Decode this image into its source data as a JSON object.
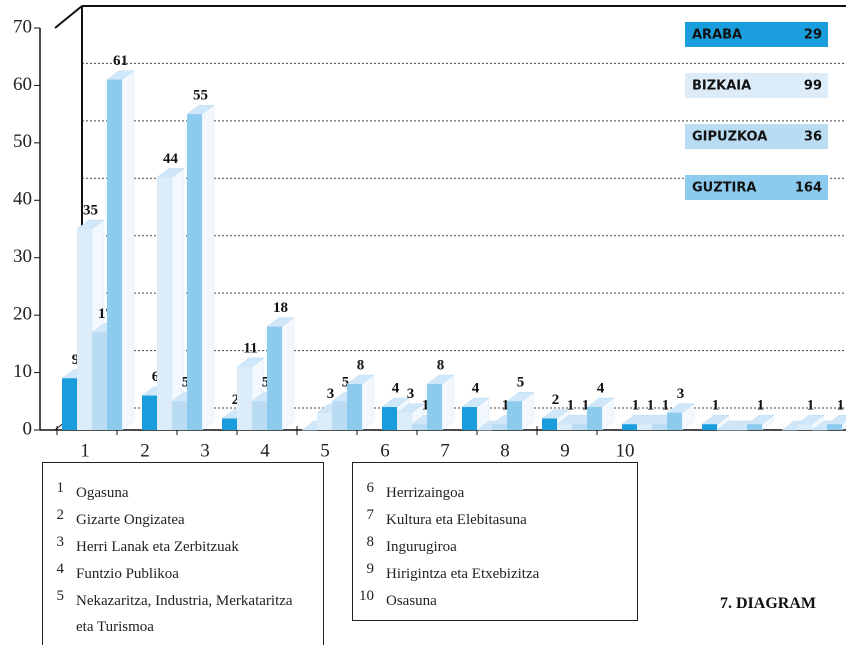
{
  "chart_data": {
    "type": "bar3d",
    "title": "7. DIAGRAM",
    "categories": [
      "1",
      "2",
      "3",
      "4",
      "5",
      "6",
      "7",
      "8",
      "9",
      "10"
    ],
    "category_names": [
      "Ogasuna",
      "Gizarte Ongizatea",
      "Herri Lanak eta Zerbitzuak",
      "Funtzio Publikoa",
      "Nekazaritza, Industria, Merkataritza eta Turismoa",
      "Herrizaingoa",
      "Kultura eta Elebitasuna",
      "Ingurugiroa",
      "Hirigintza eta Etxebizitza",
      "Osasuna"
    ],
    "series": [
      {
        "name": "ARABA",
        "total": 29,
        "color": "#1a9ddc",
        "values": [
          9,
          6,
          2,
          0,
          4,
          4,
          2,
          1,
          1,
          0
        ]
      },
      {
        "name": "BIZKAIA",
        "total": 99,
        "color": "#dcedf9",
        "values": [
          35,
          44,
          11,
          3,
          3,
          0,
          1,
          1,
          0,
          1
        ]
      },
      {
        "name": "GIPUZKOA",
        "total": 36,
        "color": "#b9dcf2",
        "values": [
          17,
          5,
          5,
          5,
          1,
          1,
          1,
          1,
          0,
          0
        ]
      },
      {
        "name": "GUZTIRA",
        "total": 164,
        "color": "#8ccbee",
        "values": [
          61,
          55,
          18,
          8,
          8,
          5,
          4,
          3,
          1,
          1
        ]
      }
    ],
    "ylim": [
      0,
      70
    ],
    "yticks": [
      0,
      10,
      20,
      30,
      40,
      50,
      60,
      70
    ],
    "grid": true
  }
}
